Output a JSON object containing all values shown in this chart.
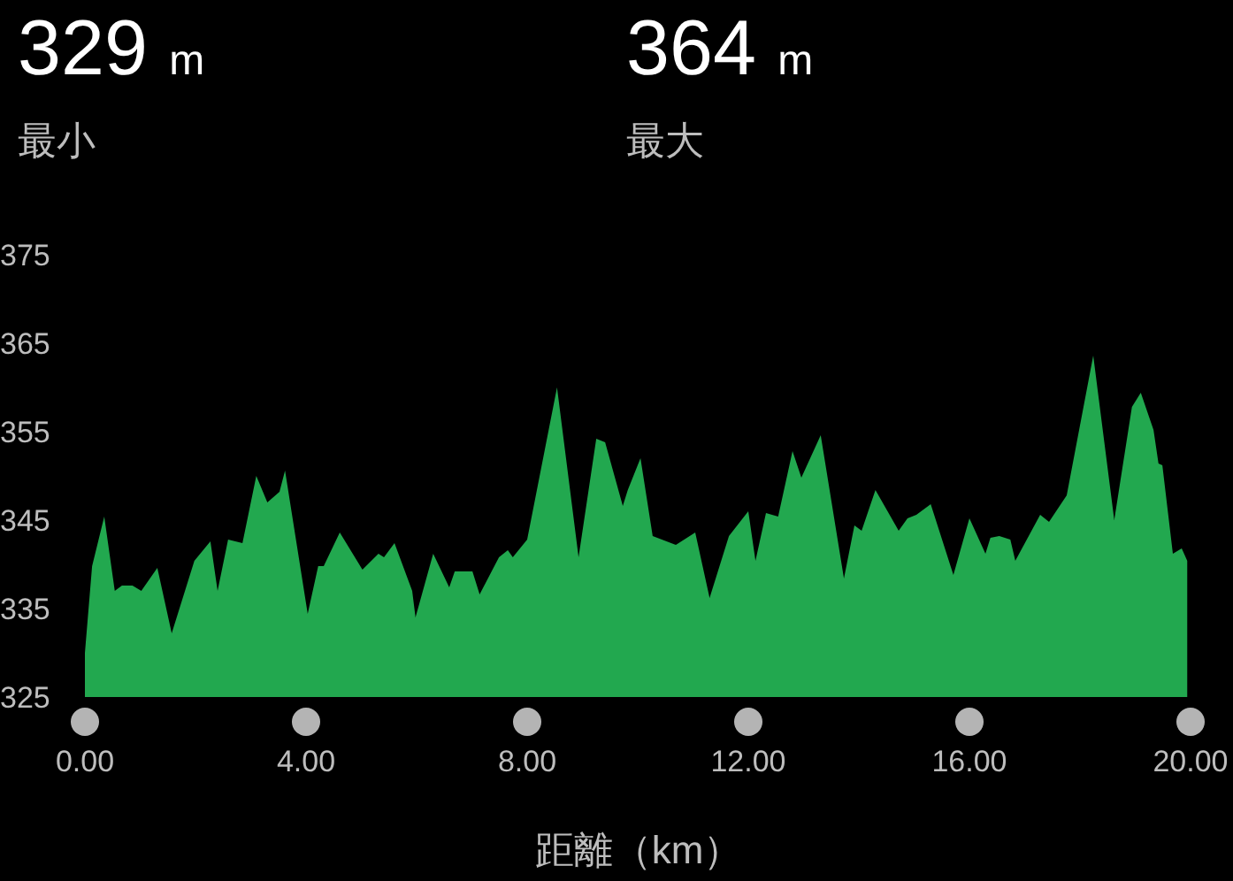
{
  "chart_data": {
    "type": "area",
    "xlabel": "距離（km）",
    "annotations": [
      "329 m",
      "最小",
      "364 m",
      "最大"
    ],
    "series": [
      {
        "color": "#22a84f",
        "x": [
          0,
          0.13,
          0.35,
          0.54,
          0.67,
          0.86,
          1.02,
          1.31,
          1.57,
          1.98,
          2.27,
          2.4,
          2.59,
          2.85,
          3.1,
          3.3,
          3.52,
          3.62,
          4.03,
          4.22,
          4.32,
          4.61,
          5.02,
          5.31,
          5.41,
          5.6,
          5.92,
          5.98,
          6.3,
          6.59,
          6.69,
          7.01,
          7.14,
          7.49,
          7.65,
          7.74,
          8.0,
          8.54,
          8.93,
          9.25,
          9.41,
          9.73,
          9.82,
          10.05,
          10.27,
          10.69,
          11.04,
          11.3,
          11.65,
          12.0,
          12.13,
          12.32,
          12.54,
          12.8,
          12.96,
          13.31,
          13.73,
          13.92,
          14.05,
          14.3,
          14.72,
          14.88,
          15.04,
          15.3,
          15.71,
          16.0,
          16.29,
          16.38,
          16.54,
          16.74,
          16.83,
          17.28,
          17.44,
          17.76,
          18.24,
          18.62,
          18.94,
          19.1,
          19.33,
          19.42,
          19.49,
          19.68,
          19.84,
          19.94
        ],
        "values": [
          330,
          339.8,
          345.4,
          337,
          337.6,
          337.6,
          337,
          339.6,
          332.2,
          340.4,
          342.6,
          337,
          342.8,
          342.4,
          350,
          347,
          348.2,
          350.6,
          334.4,
          339.8,
          339.8,
          343.6,
          339.4,
          341.2,
          340.8,
          342.4,
          337,
          334,
          341.2,
          337.4,
          339.2,
          339.2,
          336.6,
          340.8,
          341.6,
          340.8,
          342.8,
          360,
          340.8,
          354.2,
          353.8,
          346.6,
          348.4,
          352,
          343.2,
          342.2,
          343.6,
          336.2,
          343.2,
          346,
          340.4,
          345.8,
          345.4,
          352.8,
          349.8,
          354.6,
          338.4,
          344.4,
          343.8,
          348.4,
          343.8,
          345.2,
          345.6,
          346.8,
          338.8,
          345.2,
          341.2,
          343,
          343.2,
          342.8,
          340.4,
          345.6,
          344.8,
          347.8,
          363.6,
          345,
          357.8,
          359.4,
          355.2,
          351.4,
          351.2,
          341.2,
          341.8,
          340.4
        ]
      }
    ],
    "xlim": [
      0,
      20
    ],
    "xticks": [
      {
        "value": 0,
        "label": "0.00"
      },
      {
        "value": 4,
        "label": "4.00"
      },
      {
        "value": 8,
        "label": "8.00"
      },
      {
        "value": 12,
        "label": "12.00"
      },
      {
        "value": 16,
        "label": "16.00"
      },
      {
        "value": 20,
        "label": "20.00"
      }
    ],
    "ylim": [
      325,
      375
    ],
    "yticks": [
      325,
      335,
      345,
      355,
      365,
      375
    ],
    "grid": false,
    "legend": false
  }
}
